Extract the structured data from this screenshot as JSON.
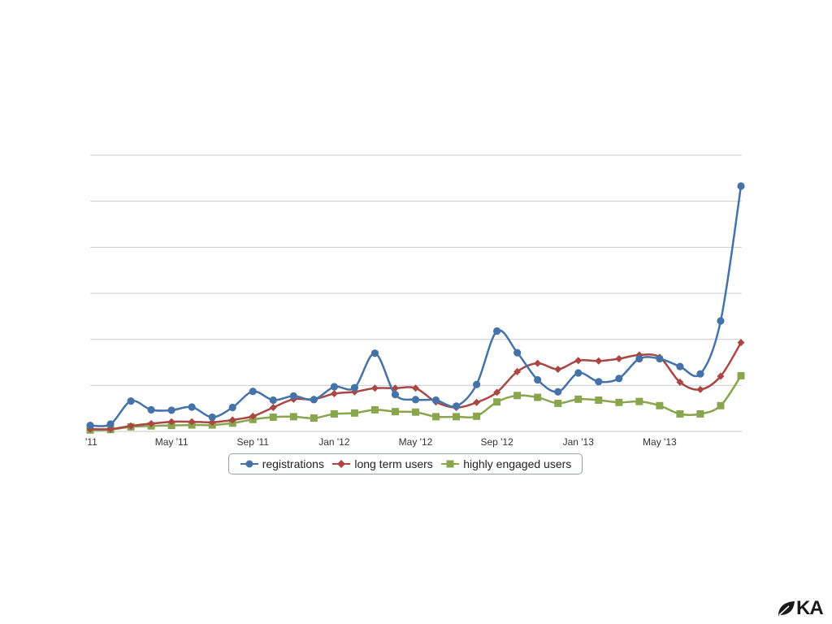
{
  "colors": {
    "registrations": "#4572A7",
    "long_term_users": "#AA4643",
    "highly_engaged_users": "#89A54E",
    "grid": "#c8ccd4"
  },
  "logo": {
    "text": "KA",
    "icon": "leaf-icon"
  },
  "chart_data": {
    "type": "line",
    "smooth": true,
    "grid": true,
    "y_tick_labels_visible": false,
    "ylim": [
      0,
      6
    ],
    "x": [
      "Jan '11",
      "Feb '11",
      "Mar '11",
      "Apr '11",
      "May '11",
      "Jun '11",
      "Jul '11",
      "Aug '11",
      "Sep '11",
      "Oct '11",
      "Nov '11",
      "Dec '11",
      "Jan '12",
      "Feb '12",
      "Mar '12",
      "Apr '12",
      "May '12",
      "Jun '12",
      "Jul '12",
      "Aug '12",
      "Sep '12",
      "Oct '12",
      "Nov '12",
      "Dec '12",
      "Jan '13",
      "Feb '13",
      "Mar '13",
      "Apr '13",
      "May '13",
      "Jun '13",
      "Jul '13",
      "Aug '13",
      "Sep '13"
    ],
    "x_tick_labels": [
      {
        "index": 0,
        "label": "'11"
      },
      {
        "index": 4,
        "label": "May '11"
      },
      {
        "index": 8,
        "label": "Sep '11"
      },
      {
        "index": 12,
        "label": "Jan '12"
      },
      {
        "index": 16,
        "label": "May '12"
      },
      {
        "index": 20,
        "label": "Sep '12"
      },
      {
        "index": 24,
        "label": "Jan '13"
      },
      {
        "index": 28,
        "label": "May '13"
      }
    ],
    "legend_position": "bottom-center",
    "series": [
      {
        "name": "registrations",
        "key": "registrations",
        "marker": "circle",
        "values": [
          0.13,
          0.16,
          0.66,
          0.47,
          0.46,
          0.53,
          0.31,
          0.52,
          0.87,
          0.68,
          0.77,
          0.69,
          0.97,
          0.95,
          1.7,
          0.8,
          0.69,
          0.68,
          0.55,
          1.02,
          2.18,
          1.71,
          1.12,
          0.86,
          1.27,
          1.08,
          1.15,
          1.58,
          1.58,
          1.41,
          1.25,
          2.4,
          5.33
        ]
      },
      {
        "name": "long term users",
        "key": "long_term_users",
        "marker": "diamond",
        "values": [
          0.05,
          0.05,
          0.12,
          0.17,
          0.21,
          0.21,
          0.2,
          0.25,
          0.33,
          0.52,
          0.7,
          0.7,
          0.82,
          0.86,
          0.94,
          0.94,
          0.94,
          0.64,
          0.52,
          0.63,
          0.85,
          1.3,
          1.48,
          1.35,
          1.54,
          1.53,
          1.58,
          1.66,
          1.61,
          1.07,
          0.91,
          1.2,
          1.93
        ]
      },
      {
        "name": "highly engaged users",
        "key": "highly_engaged_users",
        "marker": "square",
        "values": [
          0.03,
          0.04,
          0.1,
          0.12,
          0.13,
          0.14,
          0.14,
          0.18,
          0.26,
          0.31,
          0.32,
          0.29,
          0.38,
          0.4,
          0.47,
          0.43,
          0.42,
          0.32,
          0.32,
          0.33,
          0.64,
          0.78,
          0.74,
          0.61,
          0.7,
          0.68,
          0.63,
          0.65,
          0.56,
          0.38,
          0.38,
          0.56,
          1.21
        ]
      }
    ]
  }
}
